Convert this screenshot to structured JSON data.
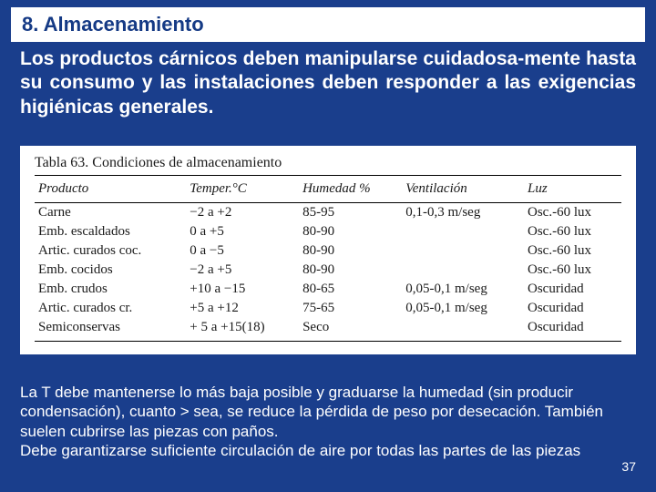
{
  "colors": {
    "page_background": "#1a3e8c",
    "heading_bg": "#ffffff",
    "heading_text": "#153a85",
    "body_text": "#ffffff",
    "table_bg": "#ffffff",
    "table_text": "#1a1a1a",
    "table_border": "#000000"
  },
  "heading": "8. Almacenamiento",
  "intro": "Los productos cárnicos deben manipularse cuidadosa-mente hasta su consumo y las instalaciones deben responder a las exigencias higiénicas generales.",
  "table": {
    "title": "Tabla 63. Condiciones de almacenamiento",
    "columns": [
      "Producto",
      "Temper.°C",
      "Humedad %",
      "Ventilación",
      "Luz"
    ],
    "rows": [
      [
        "Carne",
        "−2 a +2",
        "85-95",
        "0,1-0,3 m/seg",
        "Osc.-60 lux"
      ],
      [
        "Emb. escaldados",
        "0 a +5",
        "80-90",
        "",
        "Osc.-60 lux"
      ],
      [
        "Artic. curados coc.",
        "0 a −5",
        "80-90",
        "",
        "Osc.-60 lux"
      ],
      [
        "Emb. cocidos",
        "−2 a +5",
        "80-90",
        "",
        "Osc.-60 lux"
      ],
      [
        "Emb. crudos",
        "+10 a −15",
        "80-65",
        "0,05-0,1 m/seg",
        "Oscuridad"
      ],
      [
        "Artic. curados cr.",
        "+5 a +12",
        "75-65",
        "0,05-0,1 m/seg",
        "Oscuridad"
      ],
      [
        "Semiconservas",
        "+ 5 a +15(18)",
        "Seco",
        "",
        "Oscuridad"
      ]
    ]
  },
  "footer": "La T debe mantenerse lo más baja posible y graduarse la humedad (sin producir condensación), cuanto > sea, se reduce la pérdida de peso por desecación. También suelen cubrirse las piezas con paños.\nDebe garantizarse suficiente circulación de aire por todas las partes de las piezas",
  "page_number": "37"
}
